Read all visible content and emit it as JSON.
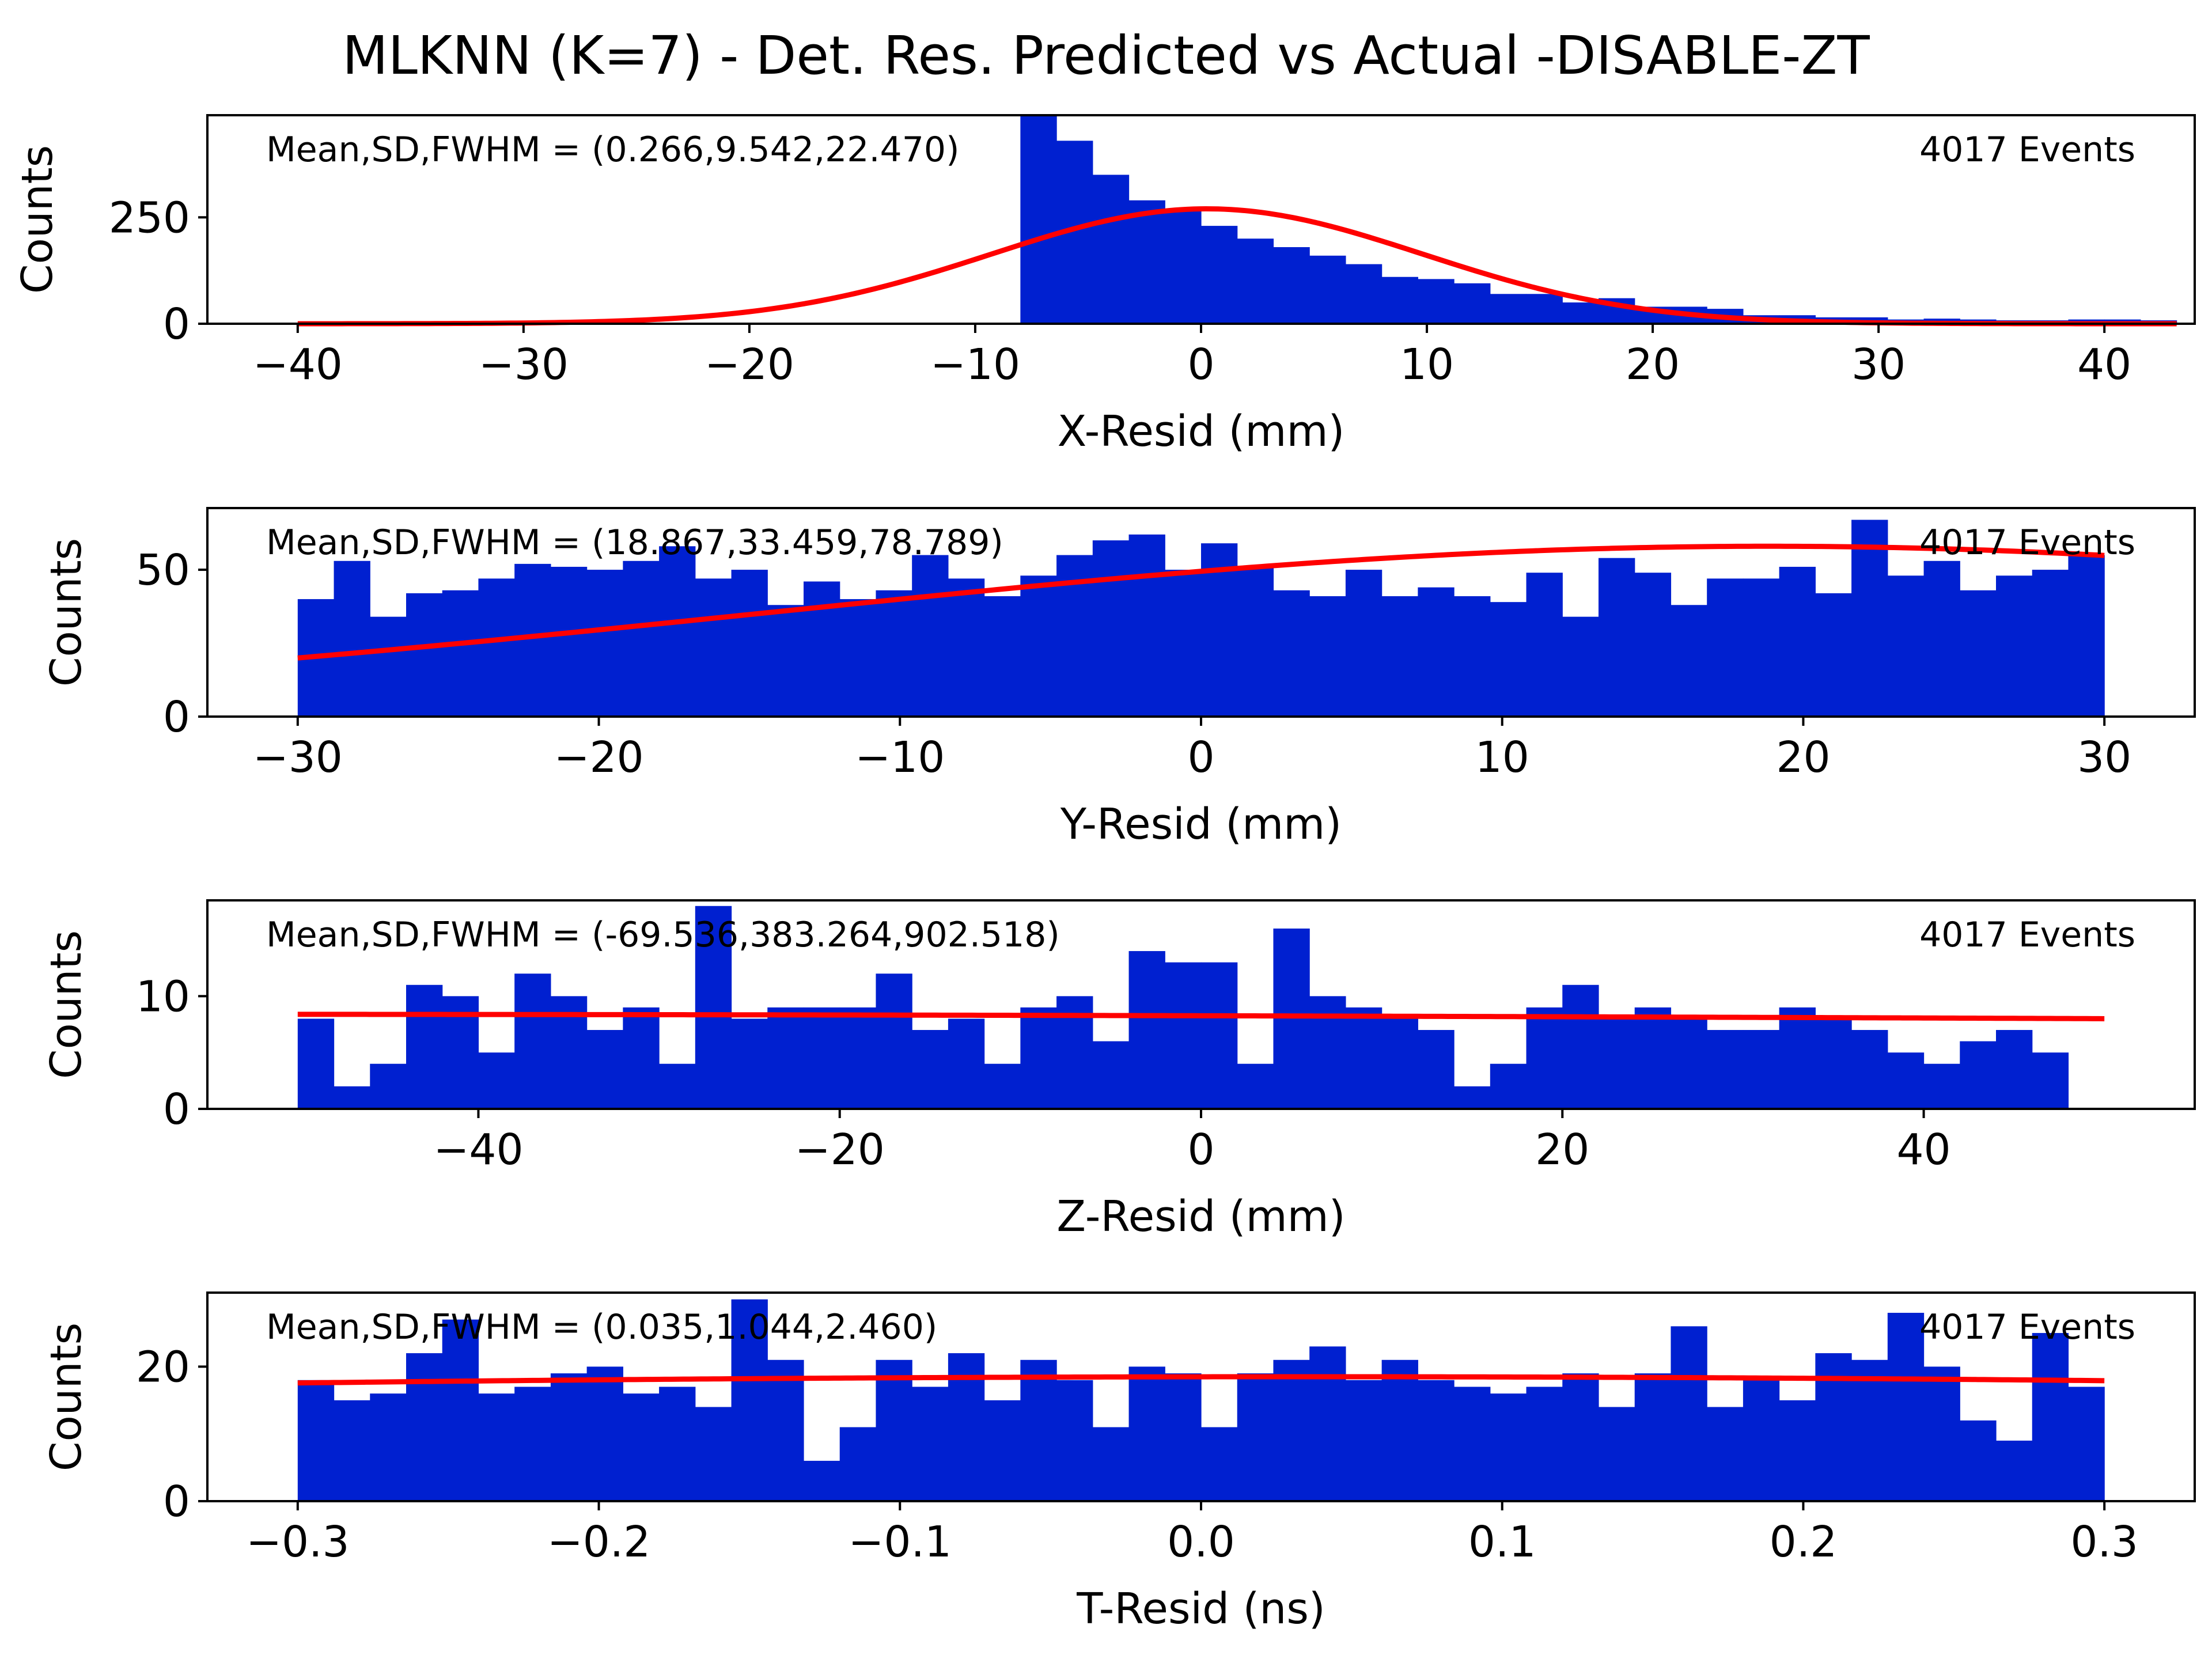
{
  "figure": {
    "title": "MLKNN (K=7) - Det. Res. Predicted vs Actual -DISABLE-ZT"
  },
  "chart_data": [
    {
      "type": "bar",
      "xlabel": "X-Resid (mm)",
      "ylabel": "Counts",
      "stats_text": "Mean,SD,FWHM = (0.266,9.542,22.470)",
      "events_text": "4017 Events",
      "xlim": [
        -44,
        44
      ],
      "ylim": [
        0,
        490
      ],
      "xticks": [
        -40,
        -30,
        -20,
        -10,
        0,
        10,
        20,
        30,
        40
      ],
      "xtick_labels": [
        "−40",
        "−30",
        "−20",
        "−10",
        "0",
        "10",
        "20",
        "30",
        "40"
      ],
      "yticks": [
        0,
        250
      ],
      "ytick_labels": [
        "0",
        "250"
      ],
      "bin_start": -40,
      "bin_width": 1.6,
      "values": [
        0,
        0,
        0,
        0,
        0,
        0,
        0,
        0,
        0,
        0,
        0,
        0,
        0,
        0,
        0,
        0,
        0,
        0,
        0,
        0,
        490,
        430,
        350,
        290,
        270,
        230,
        200,
        180,
        160,
        140,
        110,
        105,
        95,
        70,
        70,
        50,
        60,
        40,
        40,
        35,
        20,
        20,
        15,
        15,
        10,
        12,
        10,
        8,
        8,
        10,
        10,
        8
      ],
      "fit": {
        "amplitude": 270,
        "mean": 0.266,
        "sigma": 9.542
      },
      "grid": false
    },
    {
      "type": "bar",
      "xlabel": "Y-Resid (mm)",
      "ylabel": "Counts",
      "stats_text": "Mean,SD,FWHM = (18.867,33.459,78.789)",
      "events_text": "4017 Events",
      "xlim": [
        -33,
        33
      ],
      "ylim": [
        0,
        71
      ],
      "xticks": [
        -30,
        -20,
        -10,
        0,
        10,
        20,
        30
      ],
      "xtick_labels": [
        "−30",
        "−20",
        "−10",
        "0",
        "10",
        "20",
        "30"
      ],
      "yticks": [
        0,
        50
      ],
      "ytick_labels": [
        "0",
        "50"
      ],
      "bin_start": -30,
      "bin_width": 1.2,
      "values": [
        40,
        53,
        34,
        42,
        43,
        47,
        52,
        51,
        50,
        53,
        58,
        47,
        50,
        38,
        46,
        40,
        43,
        55,
        47,
        41,
        48,
        55,
        60,
        62,
        50,
        59,
        51,
        43,
        41,
        50,
        41,
        44,
        41,
        39,
        49,
        34,
        54,
        49,
        38,
        47,
        47,
        51,
        42,
        67,
        48,
        53,
        43,
        48,
        50,
        55
      ],
      "fit": {
        "amplitude": 58,
        "mean": 18.867,
        "sigma": 33.459
      },
      "grid": false
    },
    {
      "type": "bar",
      "xlabel": "Z-Resid (mm)",
      "ylabel": "Counts",
      "stats_text": "Mean,SD,FWHM = (-69.536,383.264,902.518)",
      "events_text": "4017 Events",
      "xlim": [
        -55,
        55
      ],
      "ylim": [
        0,
        18.5
      ],
      "xticks": [
        -40,
        -20,
        0,
        20,
        40
      ],
      "xtick_labels": [
        "−40",
        "−20",
        "0",
        "20",
        "40"
      ],
      "yticks": [
        0,
        10
      ],
      "ytick_labels": [
        "0",
        "10"
      ],
      "bin_start": -50,
      "bin_width": 2,
      "values": [
        8,
        2,
        4,
        11,
        10,
        5,
        12,
        10,
        7,
        9,
        4,
        18,
        8,
        9,
        9,
        9,
        12,
        7,
        8,
        4,
        9,
        10,
        6,
        14,
        13,
        13,
        4,
        16,
        10,
        9,
        8,
        7,
        2,
        4,
        9,
        11,
        8,
        9,
        8,
        7,
        7,
        9,
        8,
        7,
        5,
        4,
        6,
        7,
        5,
        0
      ],
      "fit": {
        "amplitude": 8.4,
        "mean": -69.536,
        "sigma": 383.264
      },
      "grid": false
    },
    {
      "type": "bar",
      "xlabel": "T-Resid (ns)",
      "ylabel": "Counts",
      "stats_text": "Mean,SD,FWHM = (0.035,1.044,2.460)",
      "events_text": "4017 Events",
      "xlim": [
        -0.33,
        0.33
      ],
      "ylim": [
        0,
        31
      ],
      "xticks": [
        -0.3,
        -0.2,
        -0.1,
        0.0,
        0.1,
        0.2,
        0.3
      ],
      "xtick_labels": [
        "−0.3",
        "−0.2",
        "−0.1",
        "0.0",
        "0.1",
        "0.2",
        "0.3"
      ],
      "yticks": [
        0,
        20
      ],
      "ytick_labels": [
        "0",
        "20"
      ],
      "bin_start": -0.3,
      "bin_width": 0.012,
      "values": [
        18,
        15,
        16,
        22,
        27,
        16,
        17,
        19,
        20,
        16,
        17,
        14,
        30,
        21,
        6,
        11,
        21,
        17,
        22,
        15,
        21,
        18,
        11,
        20,
        19,
        11,
        19,
        21,
        23,
        18,
        21,
        18,
        17,
        16,
        17,
        19,
        14,
        19,
        26,
        14,
        18,
        15,
        22,
        21,
        28,
        20,
        12,
        9,
        25,
        17
      ],
      "fit": {
        "amplitude": 18.5,
        "mean": 0.035,
        "sigma": 1.044
      },
      "grid": false
    }
  ]
}
